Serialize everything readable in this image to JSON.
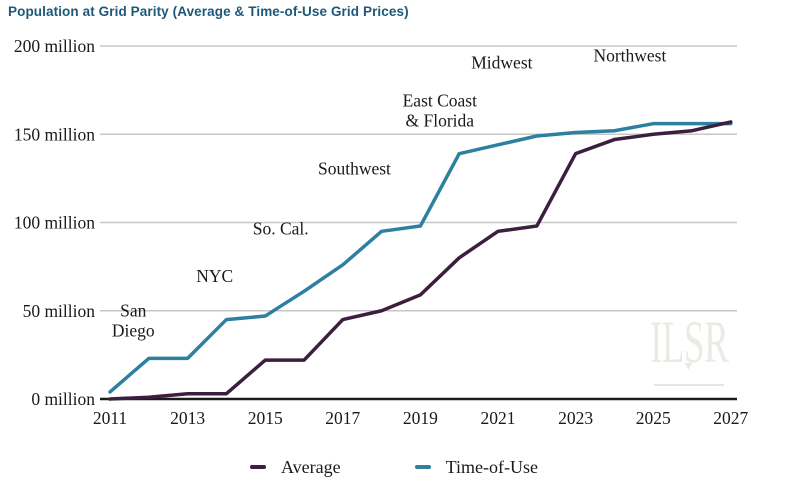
{
  "title": "Population at Grid Parity (Average & Time-of-Use Grid Prices)",
  "watermark": "ILSR",
  "chart_data": {
    "type": "line",
    "title": "Population at Grid Parity (Average & Time-of-Use Grid Prices)",
    "x": [
      2011,
      2012,
      2013,
      2014,
      2015,
      2016,
      2017,
      2018,
      2019,
      2020,
      2021,
      2022,
      2023,
      2024,
      2025,
      2026,
      2027
    ],
    "series": [
      {
        "name": "Average",
        "color": "#3c1f3e",
        "values": [
          0,
          1,
          3,
          3,
          22,
          22,
          45,
          50,
          59,
          80,
          95,
          98,
          139,
          147,
          150,
          152,
          157
        ]
      },
      {
        "name": "Time-of-Use",
        "color": "#2e80a0",
        "values": [
          4,
          23,
          23,
          45,
          47,
          61,
          76,
          95,
          98,
          139,
          144,
          149,
          151,
          152,
          156,
          156,
          156
        ]
      }
    ],
    "xlim": [
      2011,
      2027
    ],
    "ylim": [
      0,
      200
    ],
    "grid": true,
    "legend_position": "bottom",
    "xticks": [
      2011,
      2013,
      2015,
      2017,
      2019,
      2021,
      2023,
      2025,
      2027
    ],
    "yticks": [
      {
        "value": 0,
        "label": "0 million"
      },
      {
        "value": 50,
        "label": "50 million"
      },
      {
        "value": 100,
        "label": "100 million"
      },
      {
        "value": 150,
        "label": "150 million"
      },
      {
        "value": 200,
        "label": "200 million"
      }
    ],
    "annotations": [
      {
        "lines": [
          "San",
          "Diego"
        ],
        "x": 2011.6,
        "y": 44
      },
      {
        "lines": [
          "NYC"
        ],
        "x": 2013.7,
        "y": 69
      },
      {
        "lines": [
          "So. Cal."
        ],
        "x": 2015.4,
        "y": 96
      },
      {
        "lines": [
          "Southwest"
        ],
        "x": 2017.3,
        "y": 130
      },
      {
        "lines": [
          "East Coast",
          "& Florida"
        ],
        "x": 2019.5,
        "y": 163
      },
      {
        "lines": [
          "Midwest"
        ],
        "x": 2021.1,
        "y": 190
      },
      {
        "lines": [
          "Northwest"
        ],
        "x": 2024.4,
        "y": 194
      }
    ],
    "legend": [
      {
        "label": "Average",
        "color": "#3c1f3e"
      },
      {
        "label": "Time-of-Use",
        "color": "#2e80a0"
      }
    ]
  }
}
